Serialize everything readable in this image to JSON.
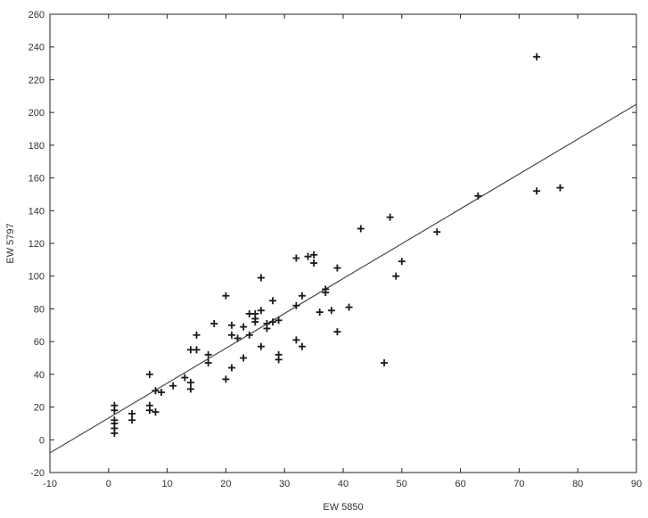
{
  "chart_data": {
    "type": "scatter",
    "title": "",
    "xlabel": "EW 5850",
    "ylabel": "EW 5797",
    "xlim": [
      -10,
      90
    ],
    "ylim": [
      -20,
      260
    ],
    "xticks": [
      -10,
      0,
      10,
      20,
      30,
      40,
      50,
      60,
      70,
      80,
      90
    ],
    "yticks": [
      -20,
      0,
      20,
      40,
      60,
      80,
      100,
      120,
      140,
      160,
      180,
      200,
      220,
      240,
      260
    ],
    "grid": false,
    "legend": "none",
    "marker": "plus",
    "point_color": "#1a1a1a",
    "line_color": "#4a4a4a",
    "series": [
      {
        "points": [
          [
            1,
            4
          ],
          [
            1,
            7
          ],
          [
            1,
            10
          ],
          [
            1,
            12
          ],
          [
            1,
            18
          ],
          [
            1,
            21
          ],
          [
            4,
            12
          ],
          [
            4,
            16
          ],
          [
            7,
            18
          ],
          [
            7,
            21
          ],
          [
            7,
            40
          ],
          [
            8,
            17
          ],
          [
            8,
            30
          ],
          [
            9,
            29
          ],
          [
            11,
            33
          ],
          [
            13,
            38
          ],
          [
            14,
            31
          ],
          [
            14,
            35
          ],
          [
            14,
            55
          ],
          [
            15,
            55
          ],
          [
            15,
            64
          ],
          [
            17,
            47
          ],
          [
            17,
            52
          ],
          [
            18,
            71
          ],
          [
            20,
            37
          ],
          [
            20,
            88
          ],
          [
            21,
            44
          ],
          [
            21,
            64
          ],
          [
            21,
            70
          ],
          [
            22,
            62
          ],
          [
            23,
            50
          ],
          [
            23,
            69
          ],
          [
            24,
            64
          ],
          [
            24,
            77
          ],
          [
            25,
            72
          ],
          [
            25,
            74
          ],
          [
            25,
            77
          ],
          [
            26,
            57
          ],
          [
            26,
            79
          ],
          [
            26,
            99
          ],
          [
            27,
            68
          ],
          [
            27,
            71
          ],
          [
            28,
            72
          ],
          [
            28,
            85
          ],
          [
            29,
            49
          ],
          [
            29,
            52
          ],
          [
            29,
            73
          ],
          [
            32,
            61
          ],
          [
            32,
            82
          ],
          [
            32,
            111
          ],
          [
            33,
            57
          ],
          [
            33,
            88
          ],
          [
            34,
            112
          ],
          [
            35,
            108
          ],
          [
            35,
            113
          ],
          [
            36,
            78
          ],
          [
            37,
            90
          ],
          [
            37,
            92
          ],
          [
            38,
            79
          ],
          [
            39,
            66
          ],
          [
            39,
            105
          ],
          [
            41,
            81
          ],
          [
            43,
            129
          ],
          [
            47,
            47
          ],
          [
            48,
            136
          ],
          [
            49,
            100
          ],
          [
            50,
            109
          ],
          [
            56,
            127
          ],
          [
            63,
            149
          ],
          [
            73,
            152
          ],
          [
            73,
            234
          ],
          [
            77,
            154
          ]
        ]
      }
    ],
    "regression_line": [
      [
        -10,
        -8
      ],
      [
        90,
        205
      ]
    ]
  }
}
